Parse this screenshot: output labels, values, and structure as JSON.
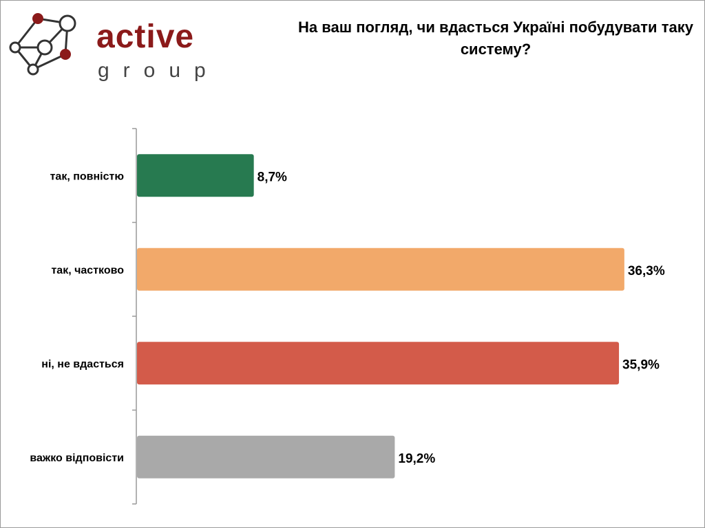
{
  "logo": {
    "word": "active",
    "sub": "group",
    "accent": "#8b1a1a"
  },
  "chart_data": {
    "type": "bar",
    "orientation": "horizontal",
    "title": "На ваш погляд, чи вдасться Україні побудувати таку систему?",
    "categories": [
      "так, повністю",
      "так, частково",
      "ні, не вдасться",
      "важко відповісти"
    ],
    "values": [
      8.7,
      36.3,
      35.9,
      19.2
    ],
    "data_labels": [
      "8,7%",
      "36,3%",
      "35,9%",
      "19,2%"
    ],
    "colors": [
      "#277a50",
      "#f2a96a",
      "#d35b4a",
      "#a9a9a9"
    ],
    "xlabel": "",
    "ylabel": "",
    "unit": "%",
    "grid": false,
    "legend": "none"
  }
}
